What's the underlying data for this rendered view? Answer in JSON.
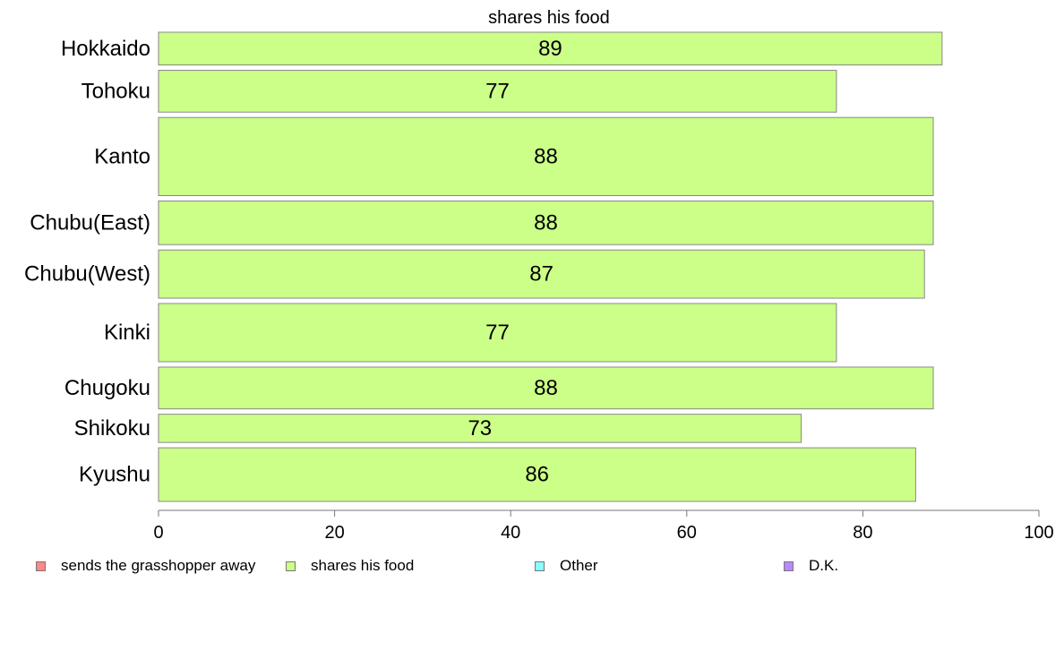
{
  "chart_data": {
    "type": "bar",
    "orientation": "horizontal",
    "title": "shares his food",
    "categories": [
      "Hokkaido",
      "Tohoku",
      "Kanto",
      "Chubu(East)",
      "Chubu(West)",
      "Kinki",
      "Chugoku",
      "Shikoku",
      "Kyushu"
    ],
    "series": [
      {
        "name": "shares his food",
        "values": [
          89,
          77,
          88,
          88,
          87,
          77,
          88,
          73,
          86
        ],
        "color": "#ccff88"
      }
    ],
    "weights": [
      36,
      46,
      86,
      48,
      53,
      64,
      46,
      31,
      59
    ],
    "xlim": [
      0,
      100
    ],
    "xticks": [
      0,
      20,
      40,
      60,
      80,
      100
    ],
    "grid": false,
    "legend_position": "bottom"
  },
  "legend": [
    {
      "label": "sends the grasshopper away",
      "color": "#ff8888"
    },
    {
      "label": "shares his food",
      "color": "#ccff88"
    },
    {
      "label": "Other",
      "color": "#88ffff"
    },
    {
      "label": "D.K.",
      "color": "#bb88ff"
    }
  ]
}
